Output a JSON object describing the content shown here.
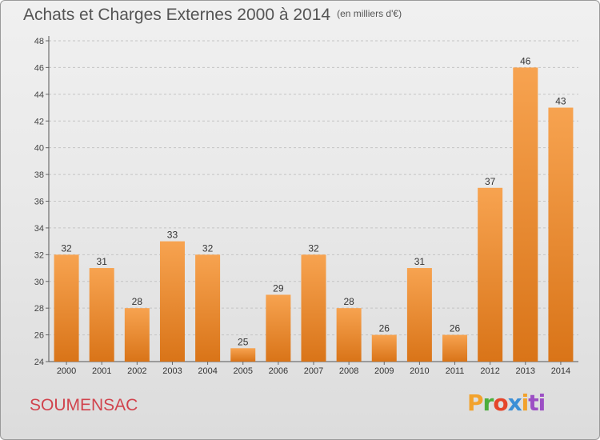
{
  "header": {
    "title": "Achats et Charges Externes 2000 à 2014",
    "unit": "(en milliers d'€)"
  },
  "footer": {
    "commune": "SOUMENSAC",
    "logo": [
      "P",
      "r",
      "o",
      "x",
      "i",
      "ti"
    ]
  },
  "colors": {
    "bar_light": "#f7a350",
    "bar_dark": "#d97418",
    "commune_text": "#d1434d"
  },
  "chart_data": {
    "type": "bar",
    "title": "Achats et Charges Externes 2000 à 2014",
    "subtitle": "(en milliers d'€)",
    "categories": [
      "2000",
      "2001",
      "2002",
      "2003",
      "2004",
      "2005",
      "2006",
      "2007",
      "2008",
      "2009",
      "2010",
      "2011",
      "2012",
      "2013",
      "2014"
    ],
    "values": [
      32,
      31,
      28,
      33,
      32,
      25,
      29,
      32,
      28,
      26,
      31,
      26,
      37,
      46,
      43
    ],
    "data_labels": [
      "32",
      "31",
      "28",
      "33",
      "32",
      "25",
      "29",
      "32",
      "28",
      "26",
      "31",
      "26",
      "37",
      "46",
      "43"
    ],
    "ylim": [
      24,
      48
    ],
    "yticks": [
      24,
      26,
      28,
      30,
      32,
      34,
      36,
      38,
      40,
      42,
      44,
      46,
      48
    ],
    "grid": true,
    "legend": "none"
  }
}
